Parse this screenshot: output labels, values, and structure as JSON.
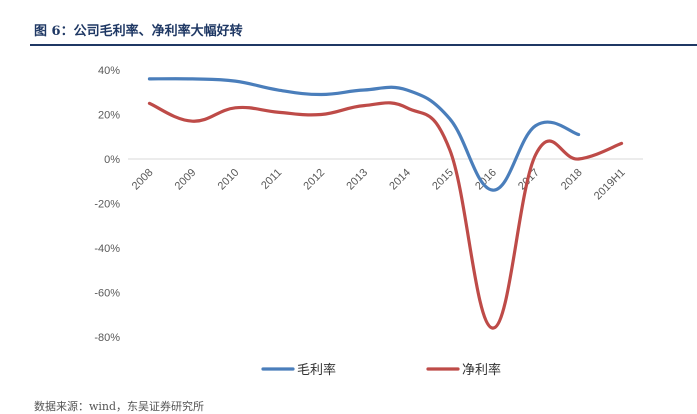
{
  "figure": {
    "title": "图 6：公司毛利率、净利率大幅好转",
    "source": "数据来源：wind，东吴证券研究所"
  },
  "chart_data": {
    "type": "line",
    "title": "",
    "xlabel": "",
    "ylabel": "",
    "categories": [
      "2008",
      "2009",
      "2010",
      "2011",
      "2012",
      "2013",
      "2014",
      "2015",
      "2016",
      "2017",
      "2018",
      "2019H1"
    ],
    "ylim": [
      -80,
      40
    ],
    "yticks": [
      40,
      20,
      0,
      -20,
      -40,
      -60,
      -80
    ],
    "ytick_labels": [
      "40%",
      "20%",
      "0%",
      "-20%",
      "-40%",
      "-60%",
      "-80%"
    ],
    "grid": false,
    "legend": "bottom",
    "series": [
      {
        "name": "毛利率",
        "color": "#4a7ebb",
        "values": [
          36,
          36,
          35,
          31,
          29,
          31,
          31,
          18,
          -14,
          15,
          11,
          null
        ]
      },
      {
        "name": "净利率",
        "color": "#be4b48",
        "values": [
          25,
          17,
          23,
          21,
          20,
          24,
          23,
          4,
          -76,
          2,
          0,
          7
        ]
      }
    ]
  }
}
